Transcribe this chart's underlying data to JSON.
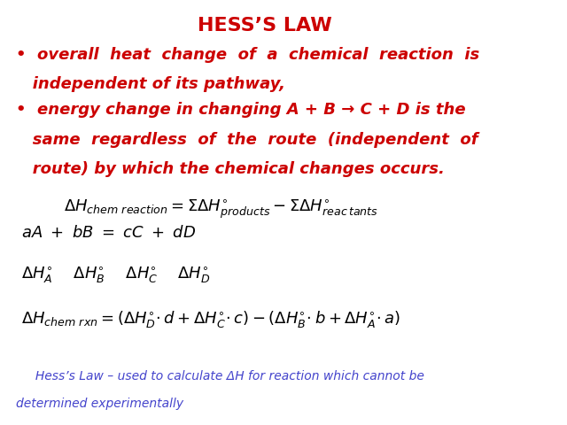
{
  "title": "HESS’S LAW",
  "title_color": "#cc0000",
  "title_fontsize": 16,
  "bullet1_line1": "•  overall  heat  change  of  a  chemical  reaction  is",
  "bullet1_line2": "   independent of its pathway,",
  "bullet2_line1": "•  energy change in changing A + B → C + D is the",
  "bullet2_line2": "   same  regardless  of  the  route  (independent  of",
  "bullet2_line3": "   route) by which the chemical changes occurs.",
  "bullet_color": "#cc0000",
  "bullet_fontsize": 13,
  "footer_line1": "     Hess’s Law – used to calculate ΔH for reaction which cannot be",
  "footer_line2": "determined experimentally",
  "footer_color": "#4444cc",
  "footer_fontsize": 10,
  "bg_color": "#ffffff",
  "formula_color": "#000000",
  "formula_fontsize": 13
}
